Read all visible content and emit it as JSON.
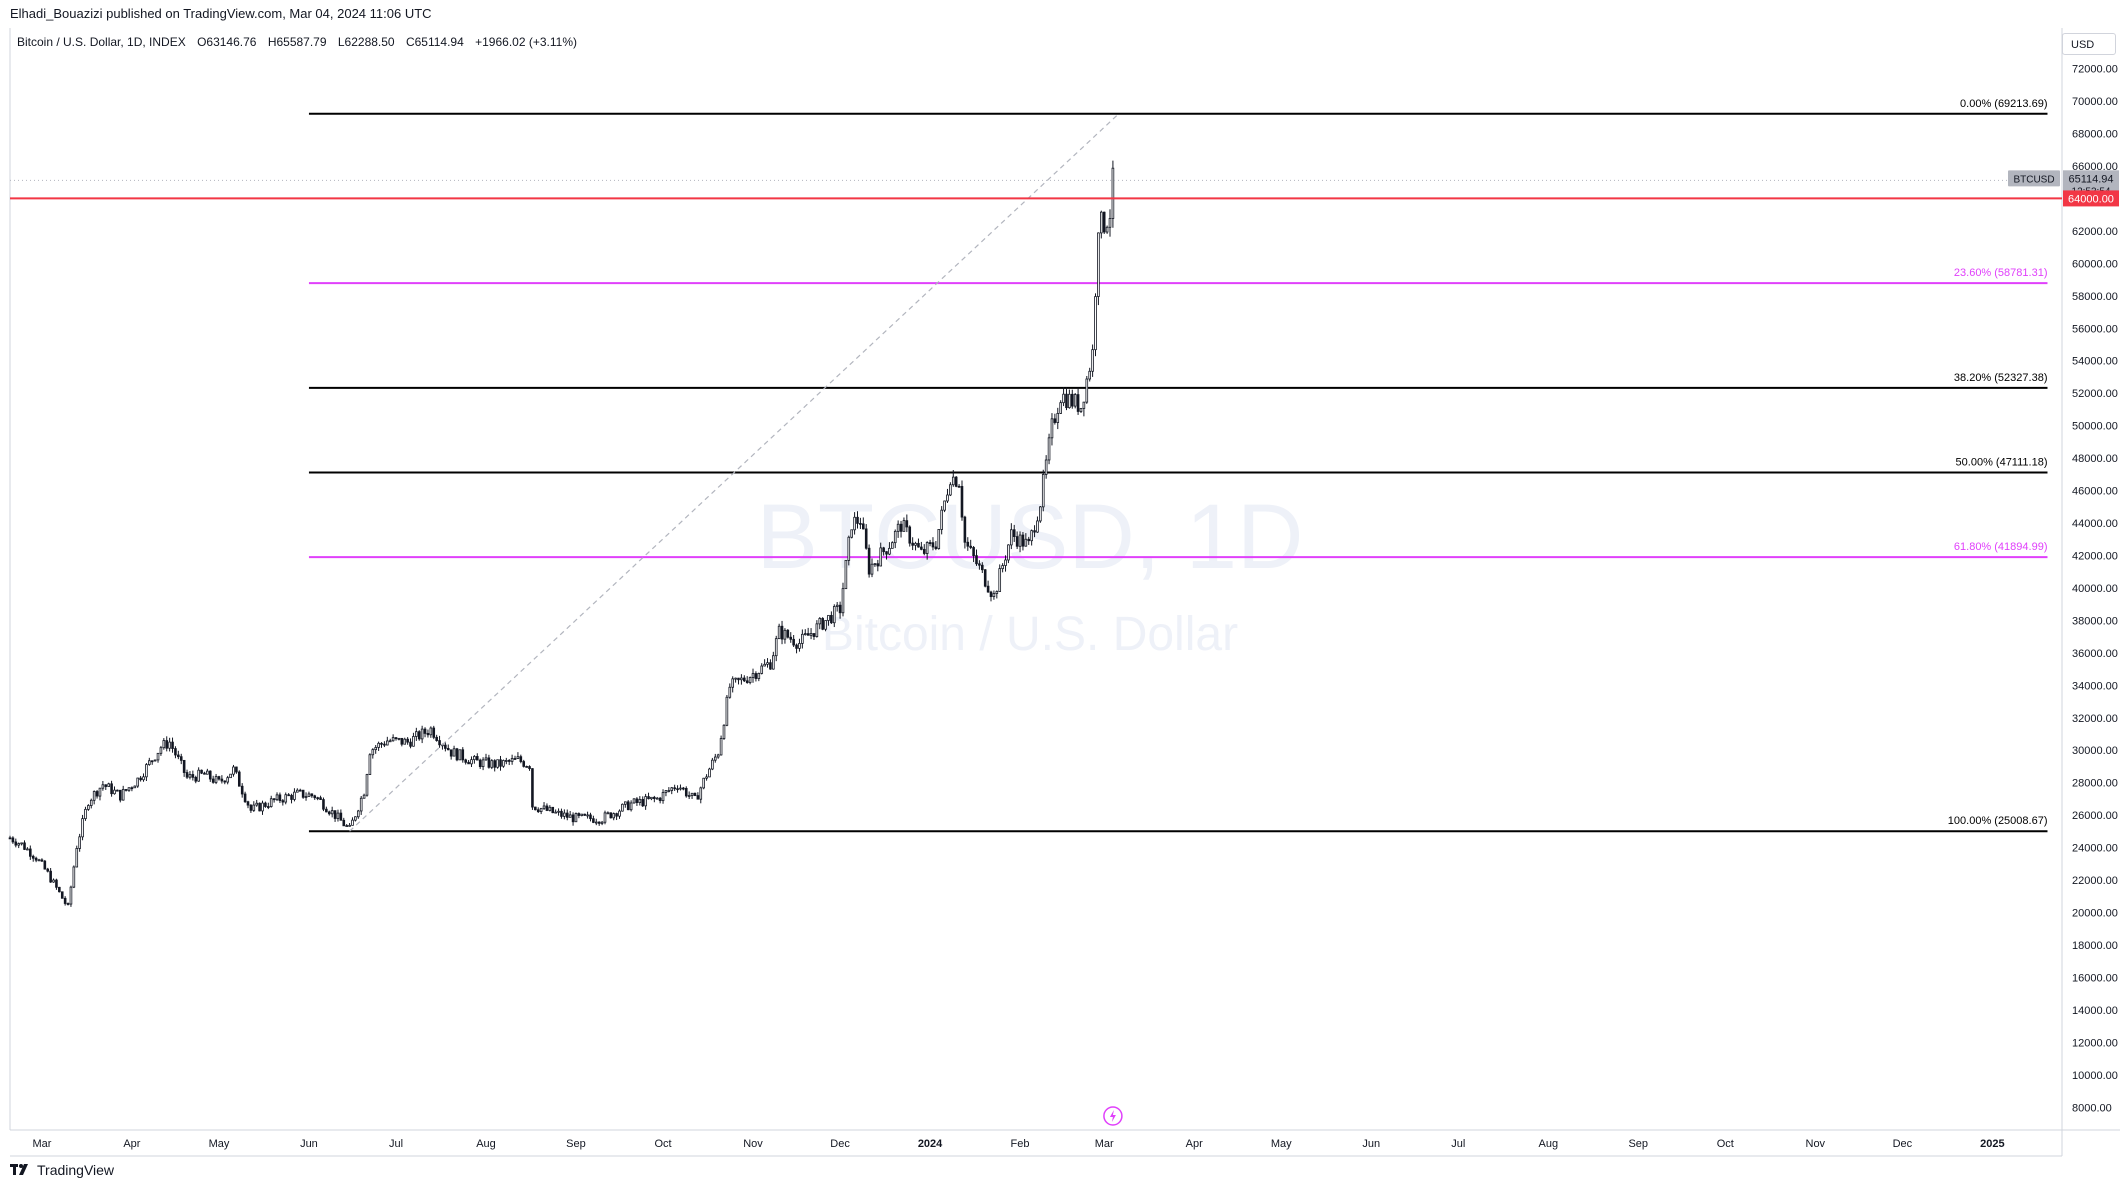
{
  "header": {
    "publisher_line": "Elhadi_Bouazizi published on TradingView.com, Mar 04, 2024 11:06 UTC"
  },
  "symbol_bar": {
    "name": "Bitcoin / U.S. Dollar, 1D, INDEX",
    "open": "O63146.76",
    "high": "H65587.79",
    "low": "L62288.50",
    "close": "C65114.94",
    "change": "+1966.02 (+3.11%)"
  },
  "watermark": {
    "line1": "BTCUSD, 1D",
    "line2": "Bitcoin / U.S. Dollar"
  },
  "axis": {
    "currency": "USD"
  },
  "footer": {
    "brand": "TradingView"
  },
  "colors": {
    "candle": "#131722",
    "red_line": "#f23645",
    "magenta": "#e040fb",
    "black_line": "#000000",
    "grid_dots": "#b2b5be"
  },
  "chart_data": {
    "type": "candlestick",
    "title": "BTCUSD, 1D",
    "y_range": [
      6600,
      74500
    ],
    "y_ticks": [
      8000,
      10000,
      12000,
      14000,
      16000,
      18000,
      20000,
      22000,
      24000,
      26000,
      28000,
      30000,
      32000,
      34000,
      36000,
      38000,
      40000,
      42000,
      44000,
      46000,
      48000,
      50000,
      52000,
      54000,
      56000,
      58000,
      60000,
      62000,
      64000,
      66000,
      68000,
      70000,
      72000
    ],
    "y_tick_labels": [
      "8000.00",
      "10000.00",
      "12000.00",
      "14000.00",
      "16000.00",
      "18000.00",
      "20000.00",
      "22000.00",
      "24000.00",
      "26000.00",
      "28000.00",
      "30000.00",
      "32000.00",
      "34000.00",
      "36000.00",
      "38000.00",
      "40000.00",
      "42000.00",
      "44000.00",
      "46000.00",
      "48000.00",
      "50000.00",
      "52000.00",
      "54000.00",
      "56000.00",
      "58000.00",
      "60000.00",
      "62000.00",
      "64000.00",
      "66000.00",
      "68000.00",
      "70000.00",
      "72000.00"
    ],
    "x_range": [
      "2023-02-18",
      "2025-01-25"
    ],
    "x_ticks": [
      {
        "date": "2023-03-01",
        "label": "Mar"
      },
      {
        "date": "2023-04-01",
        "label": "Apr"
      },
      {
        "date": "2023-05-01",
        "label": "May"
      },
      {
        "date": "2023-06-01",
        "label": "Jun"
      },
      {
        "date": "2023-07-01",
        "label": "Jul"
      },
      {
        "date": "2023-08-01",
        "label": "Aug"
      },
      {
        "date": "2023-09-01",
        "label": "Sep"
      },
      {
        "date": "2023-10-01",
        "label": "Oct"
      },
      {
        "date": "2023-11-01",
        "label": "Nov"
      },
      {
        "date": "2023-12-01",
        "label": "Dec"
      },
      {
        "date": "2024-01-01",
        "label": "2024"
      },
      {
        "date": "2024-02-01",
        "label": "Feb"
      },
      {
        "date": "2024-03-01",
        "label": "Mar"
      },
      {
        "date": "2024-04-01",
        "label": "Apr"
      },
      {
        "date": "2024-05-01",
        "label": "May"
      },
      {
        "date": "2024-06-01",
        "label": "Jun"
      },
      {
        "date": "2024-07-01",
        "label": "Jul"
      },
      {
        "date": "2024-08-01",
        "label": "Aug"
      },
      {
        "date": "2024-09-01",
        "label": "Sep"
      },
      {
        "date": "2024-10-01",
        "label": "Oct"
      },
      {
        "date": "2024-11-01",
        "label": "Nov"
      },
      {
        "date": "2024-12-01",
        "label": "Dec"
      },
      {
        "date": "2025-01-01",
        "label": "2025"
      }
    ],
    "price_path": [
      [
        "2023-02-18",
        24600
      ],
      [
        "2023-02-22",
        24200
      ],
      [
        "2023-02-27",
        23400
      ],
      [
        "2023-03-03",
        22400
      ],
      [
        "2023-03-10",
        20300
      ],
      [
        "2023-03-13",
        24100
      ],
      [
        "2023-03-17",
        26900
      ],
      [
        "2023-03-22",
        27900
      ],
      [
        "2023-03-28",
        27200
      ],
      [
        "2023-04-03",
        28200
      ],
      [
        "2023-04-11",
        30200
      ],
      [
        "2023-04-14",
        30500
      ],
      [
        "2023-04-20",
        28300
      ],
      [
        "2023-04-26",
        28500
      ],
      [
        "2023-05-01",
        28000
      ],
      [
        "2023-05-06",
        28800
      ],
      [
        "2023-05-12",
        26300
      ],
      [
        "2023-05-20",
        26900
      ],
      [
        "2023-05-28",
        27300
      ],
      [
        "2023-06-03",
        27200
      ],
      [
        "2023-06-10",
        26000
      ],
      [
        "2023-06-15",
        25100
      ],
      [
        "2023-06-20",
        27500
      ],
      [
        "2023-06-22",
        30000
      ],
      [
        "2023-06-28",
        30600
      ],
      [
        "2023-07-05",
        30500
      ],
      [
        "2023-07-13",
        31300
      ],
      [
        "2023-07-20",
        29900
      ],
      [
        "2023-07-28",
        29300
      ],
      [
        "2023-08-05",
        29100
      ],
      [
        "2023-08-12",
        29400
      ],
      [
        "2023-08-16",
        29100
      ],
      [
        "2023-08-17",
        26600
      ],
      [
        "2023-08-25",
        26100
      ],
      [
        "2023-09-01",
        25800
      ],
      [
        "2023-09-10",
        25800
      ],
      [
        "2023-09-20",
        26700
      ],
      [
        "2023-09-29",
        27000
      ],
      [
        "2023-10-06",
        27900
      ],
      [
        "2023-10-12",
        26900
      ],
      [
        "2023-10-16",
        28500
      ],
      [
        "2023-10-20",
        29900
      ],
      [
        "2023-10-24",
        33900
      ],
      [
        "2023-10-31",
        34600
      ],
      [
        "2023-11-07",
        35400
      ],
      [
        "2023-11-10",
        37300
      ],
      [
        "2023-11-17",
        36600
      ],
      [
        "2023-11-24",
        37700
      ],
      [
        "2023-12-01",
        38700
      ],
      [
        "2023-12-05",
        44000
      ],
      [
        "2023-12-08",
        44200
      ],
      [
        "2023-12-11",
        41200
      ],
      [
        "2023-12-18",
        42700
      ],
      [
        "2023-12-22",
        43900
      ],
      [
        "2023-12-29",
        42100
      ],
      [
        "2024-01-03",
        42800
      ],
      [
        "2024-01-08",
        46900
      ],
      [
        "2024-01-11",
        46600
      ],
      [
        "2024-01-13",
        42800
      ],
      [
        "2024-01-18",
        41200
      ],
      [
        "2024-01-23",
        39500
      ],
      [
        "2024-01-29",
        43300
      ],
      [
        "2024-02-04",
        42600
      ],
      [
        "2024-02-08",
        45300
      ],
      [
        "2024-02-12",
        49900
      ],
      [
        "2024-02-15",
        51900
      ],
      [
        "2024-02-22",
        51200
      ],
      [
        "2024-02-26",
        54500
      ],
      [
        "2024-02-28",
        62500
      ],
      [
        "2024-03-01",
        62400
      ],
      [
        "2024-03-03",
        63100
      ],
      [
        "2024-03-04",
        65100
      ]
    ],
    "last_price": 65114.94,
    "last_price_labels": {
      "symbol": "BTCUSD",
      "price": "65114.94",
      "countdown": "12:53:54"
    },
    "horizontal_line": {
      "price": 64000,
      "label": "64000.00",
      "color": "#f23645"
    },
    "trend_line": {
      "from": [
        "2023-06-15",
        25008.67
      ],
      "to": [
        "2024-03-06",
        69213.69
      ],
      "style": "dashed"
    },
    "fibonacci": {
      "start_date": "2023-06-01",
      "end_date": "2025-01-20",
      "levels": [
        {
          "label": "0.00% (69213.69)",
          "price": 69213.69,
          "color": "#000000"
        },
        {
          "label": "23.60% (58781.31)",
          "price": 58781.31,
          "color": "#e040fb"
        },
        {
          "label": "38.20% (52327.38)",
          "price": 52327.38,
          "color": "#000000"
        },
        {
          "label": "50.00% (47111.18)",
          "price": 47111.18,
          "color": "#000000"
        },
        {
          "label": "61.80% (41894.99)",
          "price": 41894.99,
          "color": "#e040fb"
        },
        {
          "label": "100.00% (25008.67)",
          "price": 25008.67,
          "color": "#000000"
        }
      ]
    }
  }
}
